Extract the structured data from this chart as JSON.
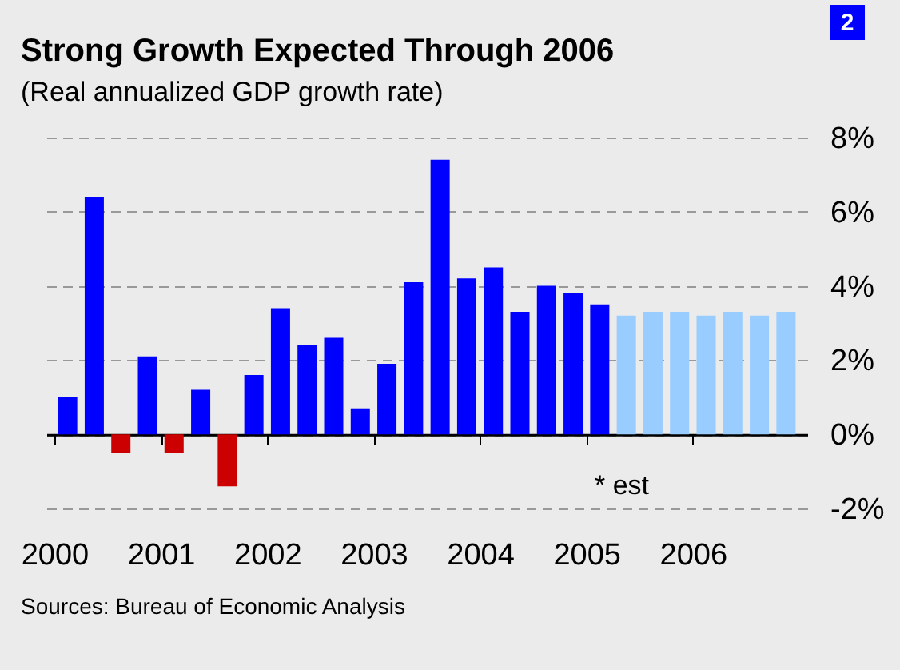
{
  "chart_data": {
    "type": "bar",
    "title": "Strong Growth Expected Through 2006",
    "subtitle": "(Real annualized GDP growth rate)",
    "series": [
      {
        "x": [
          2000.125,
          2000.375,
          2000.625,
          2000.875,
          2001.125,
          2001.375,
          2001.625,
          2001.875,
          2002.125,
          2002.375,
          2002.625,
          2002.875,
          2003.125,
          2003.375,
          2003.625,
          2003.875,
          2004.125,
          2004.375,
          2004.625,
          2004.875,
          2005.125
        ],
        "values": [
          1.0,
          6.4,
          -0.5,
          2.1,
          -0.5,
          1.2,
          -1.4,
          1.6,
          3.4,
          2.4,
          2.6,
          0.7,
          1.9,
          4.1,
          7.4,
          4.2,
          4.5,
          3.3,
          4.0,
          3.8,
          3.5
        ],
        "colors": [
          "#0000ff",
          "#0000ff",
          "#cc0000",
          "#0000ff",
          "#cc0000",
          "#0000ff",
          "#cc0000",
          "#0000ff",
          "#0000ff",
          "#0000ff",
          "#0000ff",
          "#0000ff",
          "#0000ff",
          "#0000ff",
          "#0000ff",
          "#0000ff",
          "#0000ff",
          "#0000ff",
          "#0000ff",
          "#0000ff",
          "#0000ff"
        ]
      },
      {
        "x": [
          2005.375,
          2005.625,
          2005.875,
          2006.125,
          2006.375,
          2006.625,
          2006.875
        ],
        "values": [
          3.2,
          3.3,
          3.3,
          3.2,
          3.3,
          3.2,
          3.3
        ],
        "color": "#99ccff"
      }
    ],
    "xlim": [
      2000,
      2007
    ],
    "xticks": [
      2000,
      2001,
      2002,
      2003,
      2004,
      2005,
      2006
    ],
    "ylim": [
      -2,
      8
    ],
    "yticks": [
      {
        "value": -2,
        "label": "-2%"
      },
      {
        "value": 0,
        "label": "0%"
      },
      {
        "value": 2,
        "label": "2%"
      },
      {
        "value": 4,
        "label": "4%"
      },
      {
        "value": 6,
        "label": "6%"
      },
      {
        "value": 8,
        "label": "8%"
      }
    ],
    "grid": "y",
    "legend": false,
    "annotations": [
      "2",
      "* est",
      "Sources: Bureau of Economic Analysis"
    ]
  }
}
